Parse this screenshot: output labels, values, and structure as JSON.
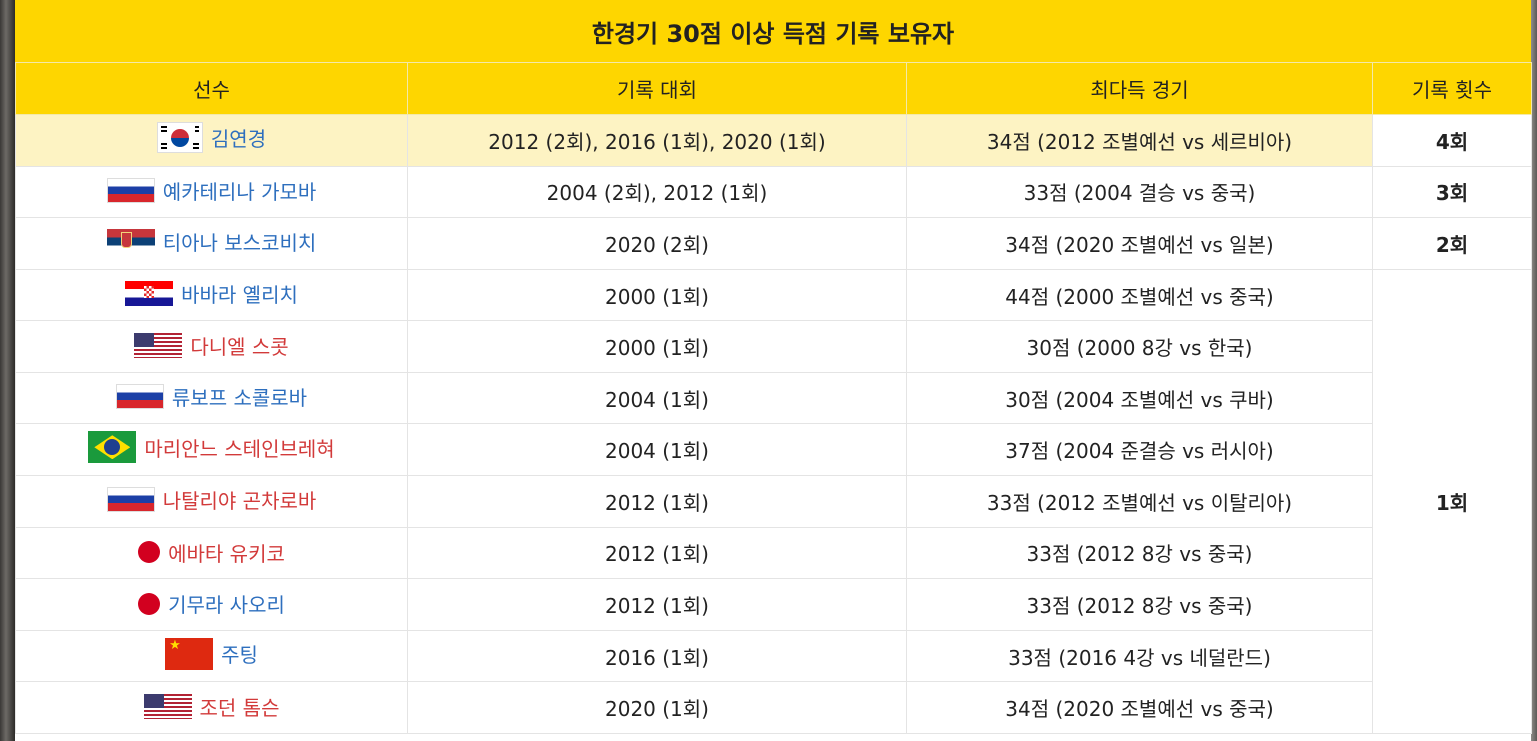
{
  "title": "한경기 30점 이상 득점 기록 보유자",
  "columns": [
    "선수",
    "기록 대회",
    "최다득 경기",
    "기록 횟수"
  ],
  "rows": [
    {
      "flag": "south-korea-flag-icon",
      "name": "김연경",
      "name_color": "blue",
      "tournaments": "2012 (2회), 2016 (1회), 2020 (1회)",
      "best_game": "34점 (2012 조별예선 vs 세르비아)",
      "count": "4회",
      "highlight": true
    },
    {
      "flag": "russia-flag-icon",
      "name": "예카테리나 가모바",
      "name_color": "blue",
      "tournaments": "2004 (2회), 2012 (1회)",
      "best_game": "33점 (2004 결승 vs 중국)",
      "count": "3회"
    },
    {
      "flag": "serbia-flag-icon",
      "name": "티아나 보스코비치",
      "name_color": "blue",
      "tournaments": "2020 (2회)",
      "best_game": "34점 (2020 조별예선 vs 일본)",
      "count": "2회"
    },
    {
      "flag": "croatia-flag-icon",
      "name": "바바라 옐리치",
      "name_color": "blue",
      "tournaments": "2000 (1회)",
      "best_game": "44점 (2000 조별예선 vs 중국)",
      "count": "1회"
    },
    {
      "flag": "usa-flag-icon",
      "name": "다니엘 스콧",
      "name_color": "red",
      "tournaments": "2000 (1회)",
      "best_game": "30점 (2000 8강 vs 한국)"
    },
    {
      "flag": "russia-flag-icon",
      "name": "류보프 소콜로바",
      "name_color": "blue",
      "tournaments": "2004 (1회)",
      "best_game": "30점 (2004 조별예선 vs 쿠바)"
    },
    {
      "flag": "brazil-flag-icon",
      "name": "마리안느 스테인브레혀",
      "name_color": "red",
      "tournaments": "2004 (1회)",
      "best_game": "37점 (2004 준결승 vs 러시아)"
    },
    {
      "flag": "russia-flag-icon",
      "name": "나탈리야 곤차로바",
      "name_color": "red",
      "tournaments": "2012 (1회)",
      "best_game": "33점 (2012 조별예선 vs 이탈리아)"
    },
    {
      "flag": "japan-flag-icon",
      "name": "에바타 유키코",
      "name_color": "red",
      "tournaments": "2012 (1회)",
      "best_game": "33점 (2012 8강 vs 중국)"
    },
    {
      "flag": "japan-flag-icon",
      "name": "기무라 사오리",
      "name_color": "blue",
      "tournaments": "2012 (1회)",
      "best_game": "33점 (2012 8강 vs 중국)"
    },
    {
      "flag": "china-flag-icon",
      "name": "주팅",
      "name_color": "blue",
      "tournaments": "2016 (1회)",
      "best_game": "33점 (2016 4강 vs 네덜란드)"
    },
    {
      "flag": "usa-flag-icon",
      "name": "조던 톰슨",
      "name_color": "red",
      "tournaments": "2020 (1회)",
      "best_game": "34점 (2020 조별예선 vs 중국)"
    }
  ],
  "colors": {
    "header_bg": "#fed600",
    "highlight_row": "#fdf3c3",
    "link_blue": "#2e6fbe",
    "link_red": "#d23a3a"
  }
}
